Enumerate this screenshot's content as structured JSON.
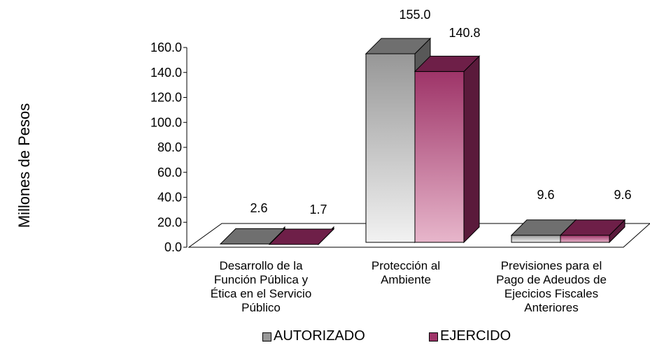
{
  "chart_data": {
    "type": "bar",
    "ylabel": "Millones de Pesos",
    "ylim": [
      0,
      160
    ],
    "yticks": [
      "0.0",
      "20.0",
      "40.0",
      "60.0",
      "80.0",
      "100.0",
      "120.0",
      "140.0",
      "160.0"
    ],
    "categories": [
      [
        "Desarrollo de la",
        "Función Pública y",
        "Ética en el Servicio",
        "Público"
      ],
      [
        "Protección al",
        "Ambiente"
      ],
      [
        "Previsiones para el",
        "Pago de Adeudos de",
        "Ejecicios Fiscales",
        "Anteriores"
      ]
    ],
    "series": [
      {
        "name": "AUTORIZADO",
        "values": [
          2.6,
          155.0,
          9.6
        ],
        "labels": [
          "2.6",
          "155.0",
          "9.6"
        ],
        "colors": {
          "top": "#6f6f6f",
          "front_top": "#979797",
          "front_bottom": "#f2f2f2",
          "side": "#585858"
        }
      },
      {
        "name": "EJERCIDO",
        "values": [
          1.7,
          140.8,
          9.6
        ],
        "labels": [
          "1.7",
          "140.8",
          "9.6"
        ],
        "colors": {
          "top": "#6e1f48",
          "front_top": "#9e3468",
          "front_bottom": "#e7b6cb",
          "side": "#5a1a3b"
        }
      }
    ],
    "grid": false,
    "legend_position": "bottom"
  }
}
